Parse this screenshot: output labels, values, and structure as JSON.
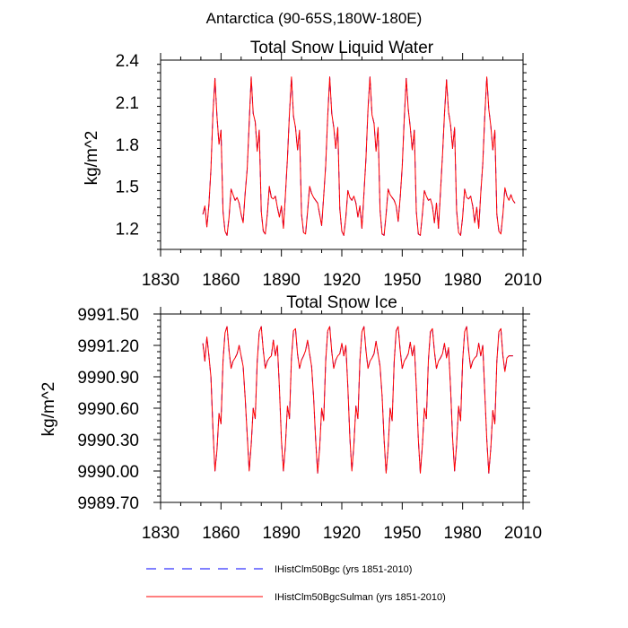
{
  "figure_title": "Antarctica (90-65S,180W-180E)",
  "chart_data": [
    {
      "type": "line",
      "title": "Total Snow Liquid Water",
      "xlabel": "",
      "ylabel": "kg/m^2",
      "xlim": [
        1830,
        2010
      ],
      "ylim": [
        1.05,
        2.4
      ],
      "xticks": [
        1830,
        1860,
        1890,
        1920,
        1950,
        1980,
        2010
      ],
      "xtick_labels": [
        "1830",
        "1860",
        "1890",
        "1920",
        "1950",
        "1980",
        "2010"
      ],
      "yticks": [
        1.2,
        1.5,
        1.8,
        2.1,
        2.4
      ],
      "ytick_labels": [
        "1.2",
        "1.5",
        "1.8",
        "2.1",
        "2.4"
      ],
      "grid": false,
      "x_start": 1851,
      "x_step": 1,
      "series": [
        {
          "name": "IHistClm50Bgc (yrs 1851-2010)",
          "color": "#0000ff",
          "dash": "dashed",
          "values": [
            1.3,
            1.36,
            1.21,
            1.37,
            1.62,
            2.02,
            2.27,
            2.0,
            1.8,
            1.9,
            1.32,
            1.18,
            1.15,
            1.28,
            1.48,
            1.44,
            1.4,
            1.42,
            1.38,
            1.3,
            1.24,
            1.45,
            1.62,
            1.95,
            2.28,
            2.02,
            1.96,
            1.75,
            1.9,
            1.32,
            1.18,
            1.16,
            1.3,
            1.5,
            1.42,
            1.41,
            1.43,
            1.35,
            1.28,
            1.36,
            1.2,
            1.44,
            1.7,
            2.02,
            2.28,
            2.0,
            1.92,
            1.76,
            1.9,
            1.3,
            1.17,
            1.16,
            1.32,
            1.5,
            1.45,
            1.42,
            1.4,
            1.38,
            1.3,
            1.22,
            1.43,
            1.65,
            2.0,
            2.28,
            2.02,
            1.92,
            1.77,
            1.92,
            1.34,
            1.18,
            1.15,
            1.28,
            1.47,
            1.42,
            1.4,
            1.43,
            1.38,
            1.28,
            1.36,
            1.2,
            1.45,
            1.7,
            2.05,
            2.28,
            2.01,
            1.95,
            1.75,
            1.92,
            1.33,
            1.16,
            1.15,
            1.3,
            1.48,
            1.44,
            1.42,
            1.4,
            1.36,
            1.25,
            1.42,
            1.64,
            1.98,
            2.27,
            2.05,
            1.92,
            1.76,
            1.9,
            1.32,
            1.16,
            1.15,
            1.3,
            1.47,
            1.43,
            1.4,
            1.41,
            1.36,
            1.24,
            1.38,
            1.2,
            1.46,
            1.72,
            2.02,
            2.26,
            2.03,
            1.94,
            1.77,
            1.92,
            1.33,
            1.17,
            1.15,
            1.28,
            1.48,
            1.42,
            1.41,
            1.43,
            1.36,
            1.24,
            1.35,
            1.2,
            1.45,
            1.66,
            2.0,
            2.28,
            2.05,
            1.93,
            1.76,
            1.9,
            1.3,
            1.18,
            1.16,
            1.3,
            1.49,
            1.43,
            1.4,
            1.44,
            1.4,
            1.38
          ]
        },
        {
          "name": "IHistClm50BgcSulman (yrs 1851-2010)",
          "color": "#ff0000",
          "dash": "solid",
          "values": [
            1.3,
            1.36,
            1.21,
            1.37,
            1.62,
            2.02,
            2.27,
            2.0,
            1.8,
            1.9,
            1.32,
            1.18,
            1.15,
            1.28,
            1.48,
            1.44,
            1.4,
            1.42,
            1.38,
            1.3,
            1.24,
            1.45,
            1.62,
            1.95,
            2.28,
            2.02,
            1.96,
            1.75,
            1.9,
            1.32,
            1.18,
            1.16,
            1.3,
            1.5,
            1.42,
            1.41,
            1.43,
            1.35,
            1.28,
            1.36,
            1.2,
            1.44,
            1.7,
            2.02,
            2.28,
            2.0,
            1.92,
            1.76,
            1.9,
            1.3,
            1.17,
            1.16,
            1.32,
            1.5,
            1.45,
            1.42,
            1.4,
            1.38,
            1.3,
            1.22,
            1.43,
            1.65,
            2.0,
            2.28,
            2.02,
            1.92,
            1.77,
            1.92,
            1.34,
            1.18,
            1.15,
            1.28,
            1.47,
            1.42,
            1.4,
            1.43,
            1.38,
            1.28,
            1.36,
            1.2,
            1.45,
            1.7,
            2.05,
            2.28,
            2.01,
            1.95,
            1.75,
            1.92,
            1.33,
            1.16,
            1.15,
            1.3,
            1.48,
            1.44,
            1.42,
            1.4,
            1.36,
            1.25,
            1.42,
            1.64,
            1.98,
            2.27,
            2.05,
            1.92,
            1.76,
            1.9,
            1.32,
            1.16,
            1.15,
            1.3,
            1.47,
            1.43,
            1.4,
            1.41,
            1.36,
            1.24,
            1.38,
            1.2,
            1.46,
            1.72,
            2.02,
            2.26,
            2.03,
            1.94,
            1.77,
            1.92,
            1.33,
            1.17,
            1.15,
            1.28,
            1.48,
            1.42,
            1.41,
            1.43,
            1.36,
            1.24,
            1.35,
            1.2,
            1.45,
            1.66,
            2.0,
            2.28,
            2.05,
            1.93,
            1.76,
            1.9,
            1.3,
            1.18,
            1.16,
            1.3,
            1.49,
            1.43,
            1.4,
            1.44,
            1.4,
            1.38
          ]
        }
      ]
    },
    {
      "type": "line",
      "title": "Total Snow Ice",
      "xlabel": "",
      "ylabel": "kg/m^2",
      "xlim": [
        1830,
        2010
      ],
      "ylim": [
        9989.7,
        9991.5
      ],
      "xticks": [
        1830,
        1860,
        1890,
        1920,
        1950,
        1980,
        2010
      ],
      "xtick_labels": [
        "1830",
        "1860",
        "1890",
        "1920",
        "1950",
        "1980",
        "2010"
      ],
      "yticks": [
        9989.7,
        9990.0,
        9990.3,
        9990.6,
        9990.9,
        9991.2,
        9991.5
      ],
      "ytick_labels": [
        "9989.70",
        "9990.00",
        "9990.30",
        "9990.60",
        "9990.90",
        "9991.20",
        "9991.50"
      ],
      "grid": false,
      "x_start": 1851,
      "x_step": 1,
      "series": [
        {
          "name": "IHistClm50Bgc (yrs 1851-2010)",
          "color": "#0000ff",
          "dash": "dashed",
          "values": [
            9991.22,
            9991.05,
            9991.28,
            9991.1,
            9990.9,
            9990.4,
            9990.0,
            9990.2,
            9990.55,
            9990.45,
            9991.05,
            9991.32,
            9991.38,
            9991.15,
            9990.98,
            9991.05,
            9991.08,
            9991.12,
            9991.2,
            9991.1,
            9991.0,
            9990.7,
            9990.35,
            9990.0,
            9990.25,
            9990.6,
            9990.5,
            9991.05,
            9991.33,
            9991.38,
            9991.15,
            9990.98,
            9991.05,
            9991.08,
            9991.1,
            9991.25,
            9991.1,
            9991.2,
            9990.8,
            9990.3,
            9990.0,
            9990.25,
            9990.62,
            9990.5,
            9991.08,
            9991.34,
            9991.36,
            9991.12,
            9990.98,
            9991.06,
            9991.1,
            9991.15,
            9991.25,
            9991.12,
            9991.0,
            9990.7,
            9990.3,
            9989.98,
            9990.22,
            9990.6,
            9990.48,
            9991.05,
            9991.34,
            9991.38,
            9991.14,
            9990.98,
            9991.06,
            9991.1,
            9991.12,
            9991.22,
            9991.1,
            9991.2,
            9990.8,
            9990.32,
            9990.0,
            9990.25,
            9990.62,
            9990.5,
            9991.06,
            9991.33,
            9991.38,
            9991.15,
            9990.98,
            9991.05,
            9991.08,
            9991.12,
            9991.24,
            9991.12,
            9991.0,
            9990.72,
            9990.3,
            9989.98,
            9990.22,
            9990.6,
            9990.48,
            9991.04,
            9991.34,
            9991.38,
            9991.15,
            9990.98,
            9991.05,
            9991.08,
            9991.12,
            9991.23,
            9991.1,
            9991.2,
            9990.8,
            9990.3,
            9989.98,
            9990.24,
            9990.6,
            9990.5,
            9991.06,
            9991.33,
            9991.36,
            9991.14,
            9990.98,
            9991.05,
            9991.08,
            9991.12,
            9991.22,
            9991.08,
            9991.18,
            9990.8,
            9990.32,
            9990.0,
            9990.25,
            9990.62,
            9990.48,
            9991.05,
            9991.33,
            9991.38,
            9991.15,
            9990.98,
            9991.05,
            9991.08,
            9991.1,
            9991.22,
            9991.1,
            9991.2,
            9990.75,
            9990.3,
            9989.98,
            9990.22,
            9990.58,
            9990.45,
            9991.05,
            9991.33,
            9991.36,
            9991.1,
            9990.95,
            9991.08,
            9991.1,
            9991.1,
            9991.1
          ]
        },
        {
          "name": "IHistClm50BgcSulman (yrs 1851-2010)",
          "color": "#ff0000",
          "dash": "solid",
          "values": [
            9991.22,
            9991.05,
            9991.28,
            9991.1,
            9990.9,
            9990.4,
            9990.0,
            9990.2,
            9990.55,
            9990.45,
            9991.05,
            9991.32,
            9991.38,
            9991.15,
            9990.98,
            9991.05,
            9991.08,
            9991.12,
            9991.2,
            9991.1,
            9991.0,
            9990.7,
            9990.35,
            9990.0,
            9990.25,
            9990.6,
            9990.5,
            9991.05,
            9991.33,
            9991.38,
            9991.15,
            9990.98,
            9991.05,
            9991.08,
            9991.1,
            9991.25,
            9991.1,
            9991.2,
            9990.8,
            9990.3,
            9990.0,
            9990.25,
            9990.62,
            9990.5,
            9991.08,
            9991.34,
            9991.36,
            9991.12,
            9990.98,
            9991.06,
            9991.1,
            9991.15,
            9991.25,
            9991.12,
            9991.0,
            9990.7,
            9990.3,
            9989.98,
            9990.22,
            9990.6,
            9990.48,
            9991.05,
            9991.34,
            9991.38,
            9991.14,
            9990.98,
            9991.06,
            9991.1,
            9991.12,
            9991.22,
            9991.1,
            9991.2,
            9990.8,
            9990.32,
            9990.0,
            9990.25,
            9990.62,
            9990.5,
            9991.06,
            9991.33,
            9991.38,
            9991.15,
            9990.98,
            9991.05,
            9991.08,
            9991.12,
            9991.24,
            9991.12,
            9991.0,
            9990.72,
            9990.3,
            9989.98,
            9990.22,
            9990.6,
            9990.48,
            9991.04,
            9991.34,
            9991.38,
            9991.15,
            9990.98,
            9991.05,
            9991.08,
            9991.12,
            9991.23,
            9991.1,
            9991.2,
            9990.8,
            9990.3,
            9989.98,
            9990.24,
            9990.6,
            9990.5,
            9991.06,
            9991.33,
            9991.36,
            9991.14,
            9990.98,
            9991.05,
            9991.08,
            9991.12,
            9991.22,
            9991.08,
            9991.18,
            9990.8,
            9990.32,
            9990.0,
            9990.25,
            9990.62,
            9990.48,
            9991.05,
            9991.33,
            9991.38,
            9991.15,
            9990.98,
            9991.05,
            9991.08,
            9991.1,
            9991.22,
            9991.1,
            9991.2,
            9990.75,
            9990.3,
            9989.98,
            9990.22,
            9990.58,
            9990.45,
            9991.05,
            9991.33,
            9991.36,
            9991.1,
            9990.95,
            9991.08,
            9991.1,
            9991.1,
            9991.1
          ]
        }
      ]
    }
  ],
  "legend": [
    {
      "label": "IHistClm50Bgc (yrs 1851-2010)",
      "color": "#0000ff",
      "dash": "dashed"
    },
    {
      "label": "IHistClm50BgcSulman (yrs 1851-2010)",
      "color": "#ff0000",
      "dash": "solid"
    }
  ]
}
